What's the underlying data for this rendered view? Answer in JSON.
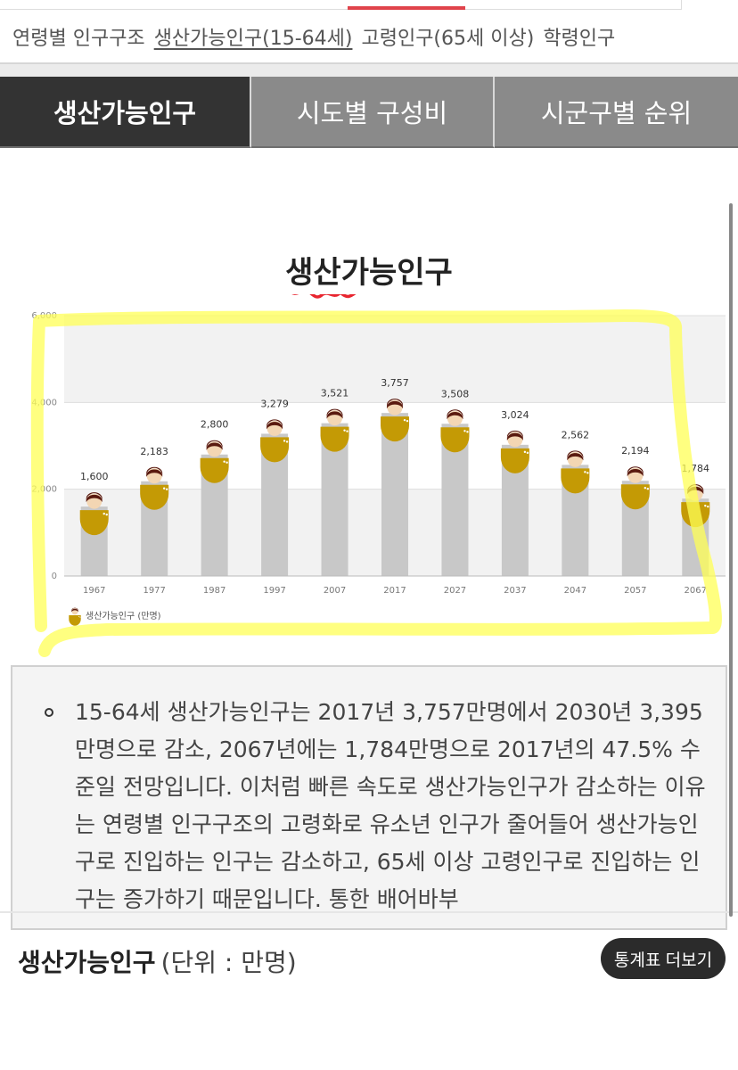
{
  "subnav": {
    "items": [
      "연령별 인구구조",
      "생산가능인구(15-64세)",
      "고령인구(65세 이상)",
      "학령인구"
    ]
  },
  "tabs": [
    "생산가능인구",
    "시도별 구성비",
    "시군구별 순위"
  ],
  "chart_data": {
    "type": "bar",
    "title": "생산가능인구",
    "categories": [
      "1967",
      "1977",
      "1987",
      "1997",
      "2007",
      "2017",
      "2027",
      "2037",
      "2047",
      "2057",
      "2067"
    ],
    "series": [
      {
        "name": "생산가능인구 (만명)",
        "values": [
          1600,
          2183,
          2800,
          3279,
          3521,
          3757,
          3508,
          3024,
          2562,
          2194,
          1784
        ]
      }
    ],
    "value_labels": [
      "1,600",
      "2,183",
      "2,800",
      "3,279",
      "3,521",
      "3,757",
      "3,508",
      "3,024",
      "2,562",
      "2,194",
      "1,784"
    ],
    "yticks": [
      "0",
      "2,000",
      "4,000",
      "6,000"
    ],
    "ylim": [
      0,
      6000
    ],
    "legend_position": "bottom-left",
    "grid": true
  },
  "colors": {
    "bar": "#c8c8c8",
    "figure_body": "#c49a05",
    "highlight": "#ffff66",
    "scribble": "#e8252f",
    "tab_active": "#333333",
    "tab_inactive": "#8a8a8a"
  },
  "description": "15-64세 생산가능인구는 2017년 3,757만명에서 2030년 3,395만명으로 감소, 2067년에는 1,784만명으로 2017년의 47.5% 수준일 전망입니다. 이처럼 빠른 속도로 생산가능인구가 감소하는 이유는 연령별 인구구조의 고령화로 유소년 인구가 줄어들어 생산가능인구로 진입하는 인구는 감소하고, 65세 이상 고령인구로 진입하는 인구는 증가하기 때문입니다. 통한 배어바부",
  "table": {
    "title": "생산가능인구",
    "unit": "(단위 : 만명)",
    "more_button": "통계표 더보기"
  }
}
